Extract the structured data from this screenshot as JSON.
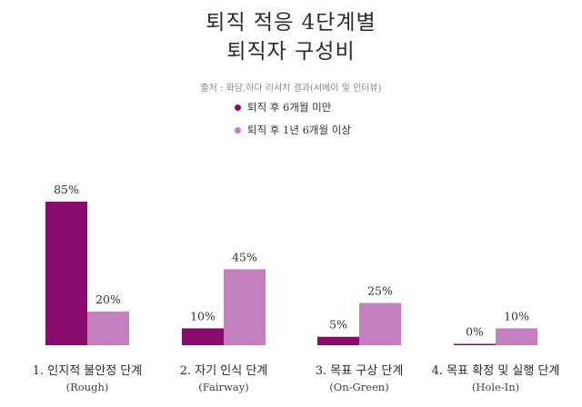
{
  "chart_data": {
    "type": "bar",
    "title_line1": "퇴직 적응 4단계별",
    "title_line2": "퇴직자 구성비",
    "source": "출처 : 화담,하다 리서치 결과(서베이 및 인터뷰)",
    "categories": [
      {
        "label": "1. 인지적 불안정 단계",
        "sub": "(Rough)"
      },
      {
        "label": "2. 자기 인식 단계",
        "sub": "(Fairway)"
      },
      {
        "label": "3. 목표 구상 단계",
        "sub": "(On-Green)"
      },
      {
        "label": "4. 목표 확정 및 실행 단계",
        "sub": "(Hole-In)"
      }
    ],
    "series": [
      {
        "name": "퇴직 후 6개월 미만",
        "color": "#8b0a6e",
        "values": [
          85,
          10,
          5,
          0
        ],
        "labels": [
          "85%",
          "10%",
          "5%",
          "0%"
        ]
      },
      {
        "name": "퇴직 후 1년 6개월 이상",
        "color": "#c47fbf",
        "values": [
          20,
          45,
          25,
          10
        ],
        "labels": [
          "20%",
          "45%",
          "25%",
          "10%"
        ]
      }
    ],
    "ylim": [
      0,
      100
    ],
    "xlabel": "",
    "ylabel": ""
  }
}
